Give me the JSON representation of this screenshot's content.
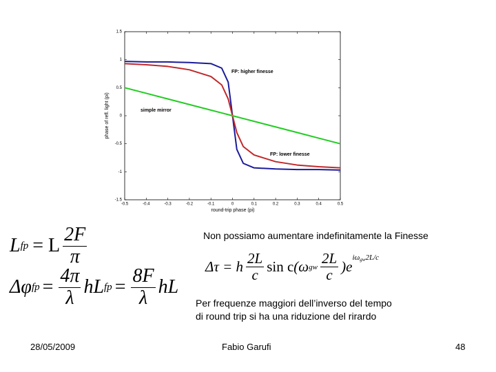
{
  "chart_data": {
    "type": "line",
    "xlabel": "round-trip phase (pi)",
    "ylabel": "phase of refl. light (pi)",
    "x": [
      -0.5,
      -0.4,
      -0.3,
      -0.2,
      -0.1,
      -0.05,
      -0.02,
      0,
      0.02,
      0.05,
      0.1,
      0.2,
      0.3,
      0.4,
      0.5
    ],
    "series": [
      {
        "name": "FP: higher finesse",
        "color": "#1a1a9a",
        "values": [
          0.97,
          0.96,
          0.96,
          0.95,
          0.93,
          0.85,
          0.6,
          0,
          -0.6,
          -0.85,
          -0.93,
          -0.95,
          -0.96,
          -0.96,
          -0.97
        ]
      },
      {
        "name": "FP: lower finesse",
        "color": "#c0282a",
        "values": [
          0.93,
          0.91,
          0.88,
          0.82,
          0.7,
          0.55,
          0.3,
          0,
          -0.3,
          -0.55,
          -0.7,
          -0.82,
          -0.88,
          -0.91,
          -0.93
        ]
      },
      {
        "name": "simple mirror",
        "color": "#22cc22",
        "values": [
          0.5,
          0.4,
          0.3,
          0.2,
          0.1,
          0.05,
          0.02,
          0,
          -0.02,
          -0.05,
          -0.1,
          -0.2,
          -0.3,
          -0.4,
          -0.5
        ]
      }
    ],
    "xlim": [
      -0.5,
      0.5
    ],
    "xticks": [
      -0.5,
      -0.4,
      -0.3,
      -0.2,
      -0.1,
      0,
      0.1,
      0.2,
      0.3,
      0.4,
      0.5
    ],
    "ylim": [
      -1.5,
      1.5
    ],
    "yticks": [
      -1.5,
      -1,
      -0.5,
      0,
      0.5,
      1,
      1.5
    ]
  },
  "equations": [
    [
      "L",
      "fp",
      "= L",
      "2F",
      "π"
    ],
    [
      "Δφ",
      "fp",
      "=",
      "4π",
      "λ",
      "hL",
      "fp",
      "=",
      "8F",
      "λ",
      "hL"
    ],
    [
      "Δτ = h",
      "2L",
      "c",
      "sin c",
      "(ω",
      "gw",
      "2L",
      "c",
      ")e",
      "iω",
      "gw",
      "2L/c"
    ]
  ],
  "text": {
    "limit": "Non possiamo aumentare indefinitamente la Finesse",
    "note": [
      "Per frequenze maggiori dell’inverso del tempo",
      "di round trip si ha una riduzione del rirardo"
    ]
  },
  "footer": {
    "date": "28/05/2009",
    "author": "Fabio Garufi",
    "page": "48"
  }
}
